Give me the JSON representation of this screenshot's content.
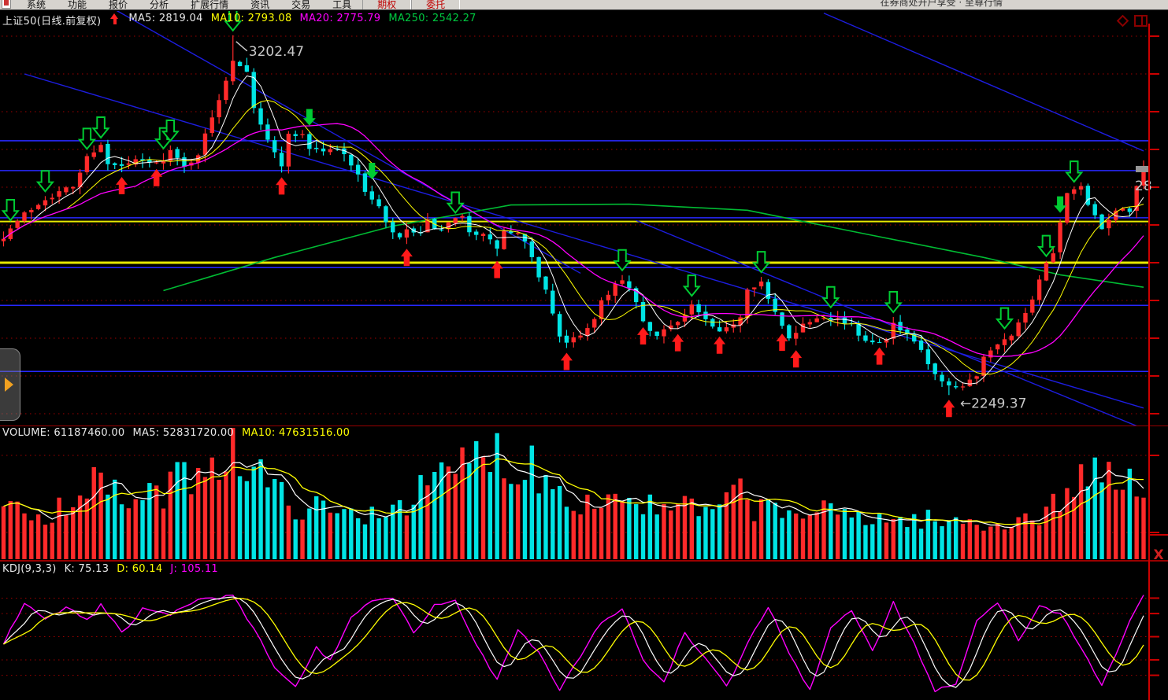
{
  "menu_bar": {
    "items": [
      {
        "label": "系统",
        "highlight": false
      },
      {
        "label": "功能",
        "highlight": false
      },
      {
        "label": "报价",
        "highlight": false
      },
      {
        "label": "分析",
        "highlight": false
      },
      {
        "label": "扩展行情",
        "highlight": false
      },
      {
        "label": "资讯",
        "highlight": false
      },
      {
        "label": "交易",
        "highlight": false
      },
      {
        "label": "工具",
        "highlight": false
      },
      {
        "label": "期权",
        "highlight": true
      },
      {
        "label": "委托",
        "highlight": true
      }
    ],
    "right_text": "在券商处开户享受 · 至尊行情"
  },
  "header": {
    "title": "上证50(日线.前复权)",
    "trend_arrow": "up-red",
    "ma_values": [
      {
        "label": "MA5:",
        "value": "2819.04",
        "color": "#e8e8e8"
      },
      {
        "label": "MA10:",
        "value": "2793.08",
        "color": "#ffff00"
      },
      {
        "label": "MA20:",
        "value": "2775.79",
        "color": "#ff00ff"
      },
      {
        "label": "MA250:",
        "value": "2542.27",
        "color": "#00c840"
      }
    ],
    "corner_icons": [
      "diamond-icon",
      "window-icon"
    ]
  },
  "volume_header": {
    "items": [
      {
        "label": "VOLUME:",
        "value": "61187460.00",
        "color": "#e8e8e8"
      },
      {
        "label": "MA5:",
        "value": "52831720.00",
        "color": "#e8e8e8"
      },
      {
        "label": "MA10:",
        "value": "47631516.00",
        "color": "#ffff00"
      }
    ]
  },
  "kdj_header": {
    "name": "KDJ(9,3,3)",
    "items": [
      {
        "label": "K:",
        "value": "75.13",
        "color": "#e8e8e8"
      },
      {
        "label": "D:",
        "value": "60.14",
        "color": "#ffff00"
      },
      {
        "label": "J:",
        "value": "105.11",
        "color": "#ff00ff"
      }
    ]
  },
  "annotations": {
    "peak_label": "3202.47",
    "low_label": "←2249.37",
    "price_axis_partial": "28",
    "close_button": "X"
  },
  "chart_data": {
    "type": "candlestick",
    "title": "上证50 daily (front-adjusted) with VOLUME and KDJ(9,3,3)",
    "bars": 165,
    "grid": {
      "price_step": 100,
      "ref_price": 2600
    },
    "price_anchors": [
      [
        0,
        2671
      ],
      [
        3,
        2729
      ],
      [
        6,
        2771
      ],
      [
        10,
        2802
      ],
      [
        12,
        2879
      ],
      [
        14,
        2917
      ],
      [
        15,
        2858
      ],
      [
        17,
        2854
      ],
      [
        19,
        2869
      ],
      [
        22,
        2862
      ],
      [
        24,
        2896
      ],
      [
        26,
        2852
      ],
      [
        28,
        2890
      ],
      [
        30,
        2983
      ],
      [
        32,
        3087
      ],
      [
        33,
        3140
      ],
      [
        35,
        3112
      ],
      [
        36,
        3015
      ],
      [
        38,
        2921
      ],
      [
        40,
        2862
      ],
      [
        41,
        2937
      ],
      [
        43,
        2942
      ],
      [
        44,
        2904
      ],
      [
        46,
        2896
      ],
      [
        48,
        2900
      ],
      [
        49,
        2894
      ],
      [
        51,
        2827
      ],
      [
        52,
        2792
      ],
      [
        54,
        2746
      ],
      [
        55,
        2702
      ],
      [
        57,
        2660
      ],
      [
        58,
        2688
      ],
      [
        60,
        2671
      ],
      [
        61,
        2708
      ],
      [
        63,
        2681
      ],
      [
        64,
        2702
      ],
      [
        66,
        2719
      ],
      [
        67,
        2687
      ],
      [
        69,
        2671
      ],
      [
        71,
        2640
      ],
      [
        72,
        2681
      ],
      [
        74,
        2675
      ],
      [
        75,
        2650
      ],
      [
        76,
        2608
      ],
      [
        78,
        2525
      ],
      [
        80,
        2410
      ],
      [
        81,
        2383
      ],
      [
        83,
        2410
      ],
      [
        85,
        2452
      ],
      [
        86,
        2500
      ],
      [
        88,
        2542
      ],
      [
        89,
        2550
      ],
      [
        91,
        2500
      ],
      [
        92,
        2437
      ],
      [
        94,
        2402
      ],
      [
        95,
        2421
      ],
      [
        96,
        2437
      ],
      [
        98,
        2462
      ],
      [
        99,
        2488
      ],
      [
        101,
        2446
      ],
      [
        103,
        2410
      ],
      [
        104,
        2425
      ],
      [
        106,
        2458
      ],
      [
        107,
        2535
      ],
      [
        109,
        2550
      ],
      [
        110,
        2500
      ],
      [
        112,
        2431
      ],
      [
        113,
        2404
      ],
      [
        115,
        2437
      ],
      [
        117,
        2458
      ],
      [
        118,
        2462
      ],
      [
        120,
        2452
      ],
      [
        122,
        2431
      ],
      [
        123,
        2410
      ],
      [
        125,
        2390
      ],
      [
        127,
        2404
      ],
      [
        128,
        2437
      ],
      [
        130,
        2404
      ],
      [
        132,
        2369
      ],
      [
        133,
        2327
      ],
      [
        135,
        2279
      ],
      [
        137,
        2262
      ],
      [
        138,
        2271
      ],
      [
        140,
        2304
      ],
      [
        141,
        2354
      ],
      [
        143,
        2390
      ],
      [
        145,
        2404
      ],
      [
        146,
        2446
      ],
      [
        148,
        2500
      ],
      [
        149,
        2562
      ],
      [
        151,
        2625
      ],
      [
        152,
        2702
      ],
      [
        153,
        2779
      ],
      [
        155,
        2800
      ],
      [
        156,
        2750
      ],
      [
        158,
        2687
      ],
      [
        159,
        2717
      ],
      [
        161,
        2750
      ],
      [
        162,
        2737
      ],
      [
        163,
        2796
      ],
      [
        164,
        2848
      ]
    ],
    "ma250_anchors": [
      [
        23,
        2526
      ],
      [
        39,
        2614
      ],
      [
        56,
        2697
      ],
      [
        73,
        2753
      ],
      [
        90,
        2755
      ],
      [
        107,
        2739
      ],
      [
        124,
        2676
      ],
      [
        141,
        2614
      ],
      [
        152,
        2568
      ],
      [
        164,
        2535
      ]
    ],
    "levels": [
      {
        "price": 2923,
        "color": "#2828ff",
        "w": 1.6
      },
      {
        "price": 2844,
        "color": "#2828ff",
        "w": 1.6
      },
      {
        "price": 2719,
        "color": "#2828ff",
        "w": 1.6
      },
      {
        "price": 2709,
        "color": "#e8e800",
        "w": 2
      },
      {
        "price": 2600,
        "color": "#e8e800",
        "w": 3
      },
      {
        "price": 2587,
        "color": "#2828ff",
        "w": 1.6
      },
      {
        "price": 2487,
        "color": "#2828ff",
        "w": 1.6
      },
      {
        "price": 2312,
        "color": "#2828ff",
        "w": 1.6
      }
    ],
    "trendlines": [
      [
        [
          3,
          3100
        ],
        [
          164,
          2215
        ]
      ],
      [
        [
          13,
          3302
        ],
        [
          83,
          2572
        ]
      ],
      [
        [
          91,
          2712
        ],
        [
          164,
          2160
        ]
      ],
      [
        [
          118,
          3261
        ],
        [
          164,
          2896
        ]
      ]
    ],
    "buy_arrow_idx": [
      17,
      22,
      40,
      58,
      71,
      81,
      92,
      97,
      103,
      112,
      114,
      126,
      136
    ],
    "sell_arrow_hollow_idx": [
      1,
      6,
      12,
      14,
      23,
      24,
      33,
      65,
      89,
      99,
      109,
      119,
      128,
      144,
      150,
      154
    ],
    "sell_arrow_solid_idx": [
      44,
      53,
      152
    ],
    "peak": {
      "idx": 33,
      "price": 3202.47
    },
    "low": {
      "idx": 136,
      "price": 2249.37
    },
    "last_price": 2848,
    "ma_headers": {
      "MA5": 2819.04,
      "MA10": 2793.08,
      "MA20": 2775.79,
      "MA250": 2542.27
    },
    "volume": {
      "current": 61187460.0,
      "ma5": 52831720.0,
      "ma10": 47631516.0,
      "anchors": [
        [
          0,
          0.4
        ],
        [
          3,
          0.44
        ],
        [
          6,
          0.4
        ],
        [
          9,
          0.5
        ],
        [
          12,
          0.62
        ],
        [
          14,
          0.68
        ],
        [
          16,
          0.55
        ],
        [
          19,
          0.5
        ],
        [
          22,
          0.55
        ],
        [
          25,
          0.68
        ],
        [
          27,
          0.78
        ],
        [
          29,
          0.85
        ],
        [
          31,
          0.92
        ],
        [
          33,
          0.97
        ],
        [
          35,
          0.85
        ],
        [
          37,
          0.72
        ],
        [
          39,
          0.58
        ],
        [
          42,
          0.48
        ],
        [
          45,
          0.44
        ],
        [
          48,
          0.4
        ],
        [
          51,
          0.38
        ],
        [
          54,
          0.44
        ],
        [
          57,
          0.5
        ],
        [
          60,
          0.58
        ],
        [
          62,
          0.66
        ],
        [
          64,
          0.74
        ],
        [
          66,
          0.82
        ],
        [
          68,
          0.9
        ],
        [
          70,
          0.99
        ],
        [
          72,
          0.88
        ],
        [
          74,
          0.78
        ],
        [
          76,
          0.85
        ],
        [
          78,
          0.72
        ],
        [
          80,
          0.62
        ],
        [
          82,
          0.55
        ],
        [
          84,
          0.5
        ],
        [
          87,
          0.52
        ],
        [
          89,
          0.58
        ],
        [
          92,
          0.48
        ],
        [
          95,
          0.42
        ],
        [
          98,
          0.46
        ],
        [
          101,
          0.4
        ],
        [
          104,
          0.46
        ],
        [
          106,
          0.66
        ],
        [
          108,
          0.46
        ],
        [
          111,
          0.42
        ],
        [
          114,
          0.4
        ],
        [
          117,
          0.43
        ],
        [
          120,
          0.38
        ],
        [
          123,
          0.4
        ],
        [
          126,
          0.36
        ],
        [
          129,
          0.33
        ],
        [
          132,
          0.36
        ],
        [
          135,
          0.31
        ],
        [
          138,
          0.33
        ],
        [
          141,
          0.3
        ],
        [
          144,
          0.33
        ],
        [
          147,
          0.36
        ],
        [
          150,
          0.4
        ],
        [
          152,
          0.52
        ],
        [
          154,
          0.68
        ],
        [
          156,
          0.78
        ],
        [
          158,
          0.72
        ],
        [
          160,
          0.62
        ],
        [
          161,
          0.58
        ],
        [
          162,
          0.88
        ],
        [
          163,
          0.55
        ],
        [
          164,
          0.5
        ]
      ]
    },
    "kdj": {
      "k": 75.13,
      "d": 60.14,
      "j": 105.11,
      "range": [
        -30,
        128
      ],
      "gridlines": [
        100,
        80,
        50,
        20,
        0
      ],
      "j_anchors": [
        [
          0,
          40
        ],
        [
          3,
          95
        ],
        [
          6,
          75
        ],
        [
          9,
          88
        ],
        [
          12,
          70
        ],
        [
          14,
          92
        ],
        [
          17,
          55
        ],
        [
          20,
          85
        ],
        [
          24,
          78
        ],
        [
          28,
          98
        ],
        [
          33,
          102
        ],
        [
          36,
          60
        ],
        [
          39,
          10
        ],
        [
          42,
          -15
        ],
        [
          45,
          35
        ],
        [
          47,
          20
        ],
        [
          50,
          75
        ],
        [
          53,
          95
        ],
        [
          56,
          100
        ],
        [
          59,
          55
        ],
        [
          62,
          90
        ],
        [
          65,
          95
        ],
        [
          68,
          40
        ],
        [
          71,
          -5
        ],
        [
          74,
          60
        ],
        [
          77,
          30
        ],
        [
          80,
          -18
        ],
        [
          83,
          25
        ],
        [
          86,
          70
        ],
        [
          89,
          85
        ],
        [
          92,
          20
        ],
        [
          95,
          -10
        ],
        [
          98,
          55
        ],
        [
          101,
          20
        ],
        [
          104,
          -15
        ],
        [
          107,
          40
        ],
        [
          110,
          90
        ],
        [
          113,
          30
        ],
        [
          116,
          -20
        ],
        [
          119,
          60
        ],
        [
          122,
          85
        ],
        [
          125,
          30
        ],
        [
          128,
          95
        ],
        [
          131,
          40
        ],
        [
          134,
          -20
        ],
        [
          137,
          -10
        ],
        [
          140,
          70
        ],
        [
          143,
          95
        ],
        [
          146,
          45
        ],
        [
          149,
          90
        ],
        [
          152,
          80
        ],
        [
          155,
          35
        ],
        [
          158,
          -15
        ],
        [
          161,
          50
        ],
        [
          164,
          105
        ]
      ]
    },
    "colors": {
      "candle_up": "#ff2a2a",
      "candle_down": "#00e4e4",
      "ma5": "#ffffff",
      "ma10": "#ffff00",
      "ma20": "#ff00ff",
      "ma250": "#00bb33",
      "grid_dotted": "#a00000",
      "axis_red": "#cc0000",
      "trendline_blue": "#1d1de0",
      "buy_arrow": "#ff1a1a",
      "sell_arrow": "#00cc33",
      "price_marker": "#979797"
    }
  }
}
